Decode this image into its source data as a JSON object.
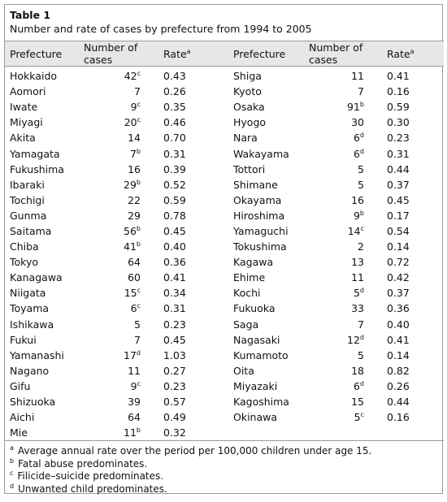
{
  "table": {
    "label": "Table 1",
    "caption": "Number and rate of cases by prefecture from 1994 to 2005",
    "headers": {
      "prefecture": "Prefecture",
      "cases": "Number of cases",
      "rate": "Rate",
      "rate_mark": "a"
    },
    "rows": [
      [
        {
          "p": "Hokkaido",
          "n": "42",
          "m": "c",
          "r": "0.43"
        },
        {
          "p": "Shiga",
          "n": "11",
          "m": "",
          "r": "0.41"
        }
      ],
      [
        {
          "p": "Aomori",
          "n": "7",
          "m": "",
          "r": "0.26"
        },
        {
          "p": "Kyoto",
          "n": "7",
          "m": "",
          "r": "0.16"
        }
      ],
      [
        {
          "p": "Iwate",
          "n": "9",
          "m": "c",
          "r": "0.35"
        },
        {
          "p": "Osaka",
          "n": "91",
          "m": "b",
          "r": "0.59"
        }
      ],
      [
        {
          "p": "Miyagi",
          "n": "20",
          "m": "c",
          "r": "0.46"
        },
        {
          "p": "Hyogo",
          "n": "30",
          "m": "",
          "r": "0.30"
        }
      ],
      [
        {
          "p": "Akita",
          "n": "14",
          "m": "",
          "r": "0.70"
        },
        {
          "p": "Nara",
          "n": "6",
          "m": "d",
          "r": "0.23"
        }
      ],
      [
        {
          "p": "Yamagata",
          "n": "7",
          "m": "b",
          "r": "0.31"
        },
        {
          "p": "Wakayama",
          "n": "6",
          "m": "d",
          "r": "0.31"
        }
      ],
      [
        {
          "p": "Fukushima",
          "n": "16",
          "m": "",
          "r": "0.39"
        },
        {
          "p": "Tottori",
          "n": "5",
          "m": "",
          "r": "0.44"
        }
      ],
      [
        {
          "p": "Ibaraki",
          "n": "29",
          "m": "b",
          "r": "0.52"
        },
        {
          "p": "Shimane",
          "n": "5",
          "m": "",
          "r": "0.37"
        }
      ],
      [
        {
          "p": "Tochigi",
          "n": "22",
          "m": "",
          "r": "0.59"
        },
        {
          "p": "Okayama",
          "n": "16",
          "m": "",
          "r": "0.45"
        }
      ],
      [
        {
          "p": "Gunma",
          "n": "29",
          "m": "",
          "r": "0.78"
        },
        {
          "p": "Hiroshima",
          "n": "9",
          "m": "b",
          "r": "0.17"
        }
      ],
      [
        {
          "p": "Saitama",
          "n": "56",
          "m": "b",
          "r": "0.45"
        },
        {
          "p": "Yamaguchi",
          "n": "14",
          "m": "c",
          "r": "0.54"
        }
      ],
      [
        {
          "p": "Chiba",
          "n": "41",
          "m": "b",
          "r": "0.40"
        },
        {
          "p": "Tokushima",
          "n": "2",
          "m": "",
          "r": "0.14"
        }
      ],
      [
        {
          "p": "Tokyo",
          "n": "64",
          "m": "",
          "r": "0.36"
        },
        {
          "p": "Kagawa",
          "n": "13",
          "m": "",
          "r": "0.72"
        }
      ],
      [
        {
          "p": "Kanagawa",
          "n": "60",
          "m": "",
          "r": "0.41"
        },
        {
          "p": "Ehime",
          "n": "11",
          "m": "",
          "r": "0.42"
        }
      ],
      [
        {
          "p": "Niigata",
          "n": "15",
          "m": "c",
          "r": "0.34"
        },
        {
          "p": "Kochi",
          "n": "5",
          "m": "d",
          "r": "0.37"
        }
      ],
      [
        {
          "p": "Toyama",
          "n": "6",
          "m": "c",
          "r": "0.31"
        },
        {
          "p": "Fukuoka",
          "n": "33",
          "m": "",
          "r": "0.36"
        }
      ],
      [
        {
          "p": "Ishikawa",
          "n": "5",
          "m": "",
          "r": "0.23"
        },
        {
          "p": "Saga",
          "n": "7",
          "m": "",
          "r": "0.40"
        }
      ],
      [
        {
          "p": "Fukui",
          "n": "7",
          "m": "",
          "r": "0.45"
        },
        {
          "p": "Nagasaki",
          "n": "12",
          "m": "d",
          "r": "0.41"
        }
      ],
      [
        {
          "p": "Yamanashi",
          "n": "17",
          "m": "d",
          "r": "1.03"
        },
        {
          "p": "Kumamoto",
          "n": "5",
          "m": "",
          "r": "0.14"
        }
      ],
      [
        {
          "p": "Nagano",
          "n": "11",
          "m": "",
          "r": "0.27"
        },
        {
          "p": "Oita",
          "n": "18",
          "m": "",
          "r": "0.82"
        }
      ],
      [
        {
          "p": "Gifu",
          "n": "9",
          "m": "c",
          "r": "0.23"
        },
        {
          "p": "Miyazaki",
          "n": "6",
          "m": "d",
          "r": "0.26"
        }
      ],
      [
        {
          "p": "Shizuoka",
          "n": "39",
          "m": "",
          "r": "0.57"
        },
        {
          "p": "Kagoshima",
          "n": "15",
          "m": "",
          "r": "0.44"
        }
      ],
      [
        {
          "p": "Aichi",
          "n": "64",
          "m": "",
          "r": "0.49"
        },
        {
          "p": "Okinawa",
          "n": "5",
          "m": "c",
          "r": "0.16"
        }
      ],
      [
        {
          "p": "Mie",
          "n": "11",
          "m": "b",
          "r": "0.32"
        },
        null
      ]
    ],
    "footnotes": [
      {
        "mark": "a",
        "text": "Average annual rate over the period per 100,000 children under age 15."
      },
      {
        "mark": "b",
        "text": "Fatal abuse predominates."
      },
      {
        "mark": "c",
        "text": "Filicide–suicide predominates."
      },
      {
        "mark": "d",
        "text": "Unwanted child predominates."
      }
    ]
  }
}
